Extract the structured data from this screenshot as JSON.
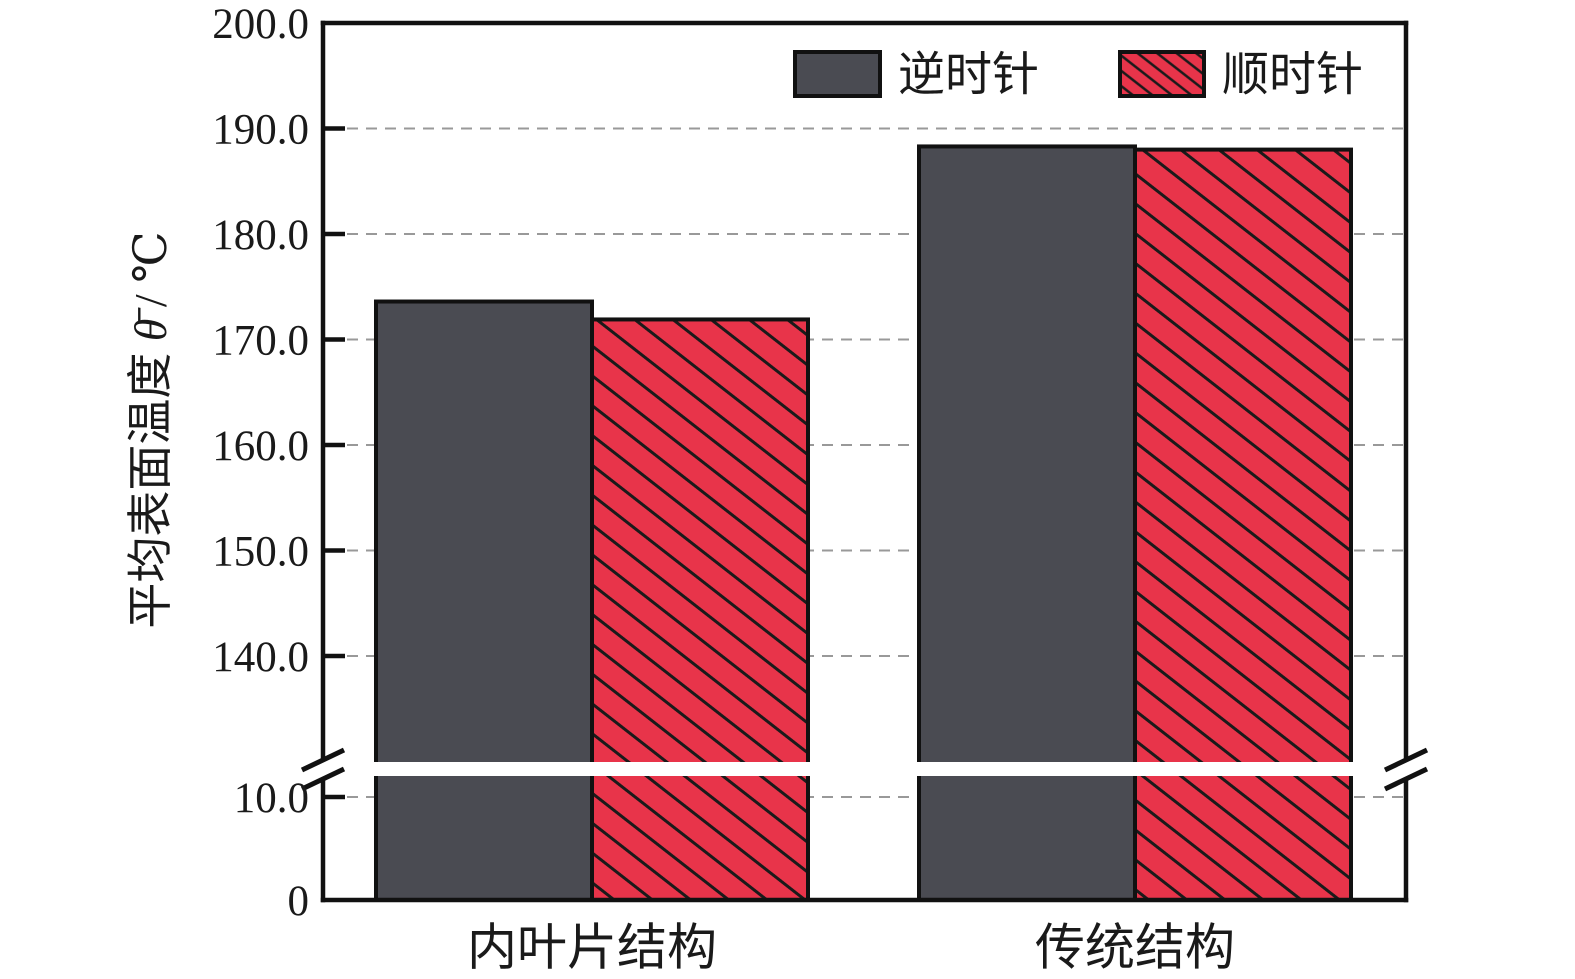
{
  "chart_data": {
    "type": "bar",
    "title": "",
    "categories": [
      "内叶片结构",
      "传统结构"
    ],
    "series": [
      {
        "name": "逆时针",
        "values": [
          173.6,
          188.3
        ],
        "style": "solid-dark"
      },
      {
        "name": "顺时针",
        "values": [
          171.9,
          188.0
        ],
        "style": "red-hatched"
      }
    ],
    "ylabel": {
      "prefix": "平均表面温度 ",
      "symbol": "θ̄",
      "suffix": " / ℃"
    },
    "xlabel": "",
    "y_axis": {
      "broken": true,
      "upper_segment": {
        "range": [
          130,
          200
        ],
        "ticks": [
          "200.0",
          "190.0",
          "180.0",
          "170.0",
          "160.0",
          "150.0",
          "140.0"
        ]
      },
      "lower_segment": {
        "range": [
          0,
          12
        ],
        "ticks": [
          "10.0",
          "0"
        ]
      }
    },
    "grid": {
      "horizontal": true,
      "style": "dashed"
    },
    "legend": {
      "position": "top-right-inside",
      "entries": [
        "逆时针",
        "顺时针"
      ]
    },
    "colors": {
      "bar_dark": "#4a4b52",
      "bar_red": "#e8344a",
      "hatch_line": "#1a1a1a",
      "grid": "#999999",
      "axis": "#111111",
      "text": "#1a1a1a",
      "background": "#ffffff"
    }
  }
}
